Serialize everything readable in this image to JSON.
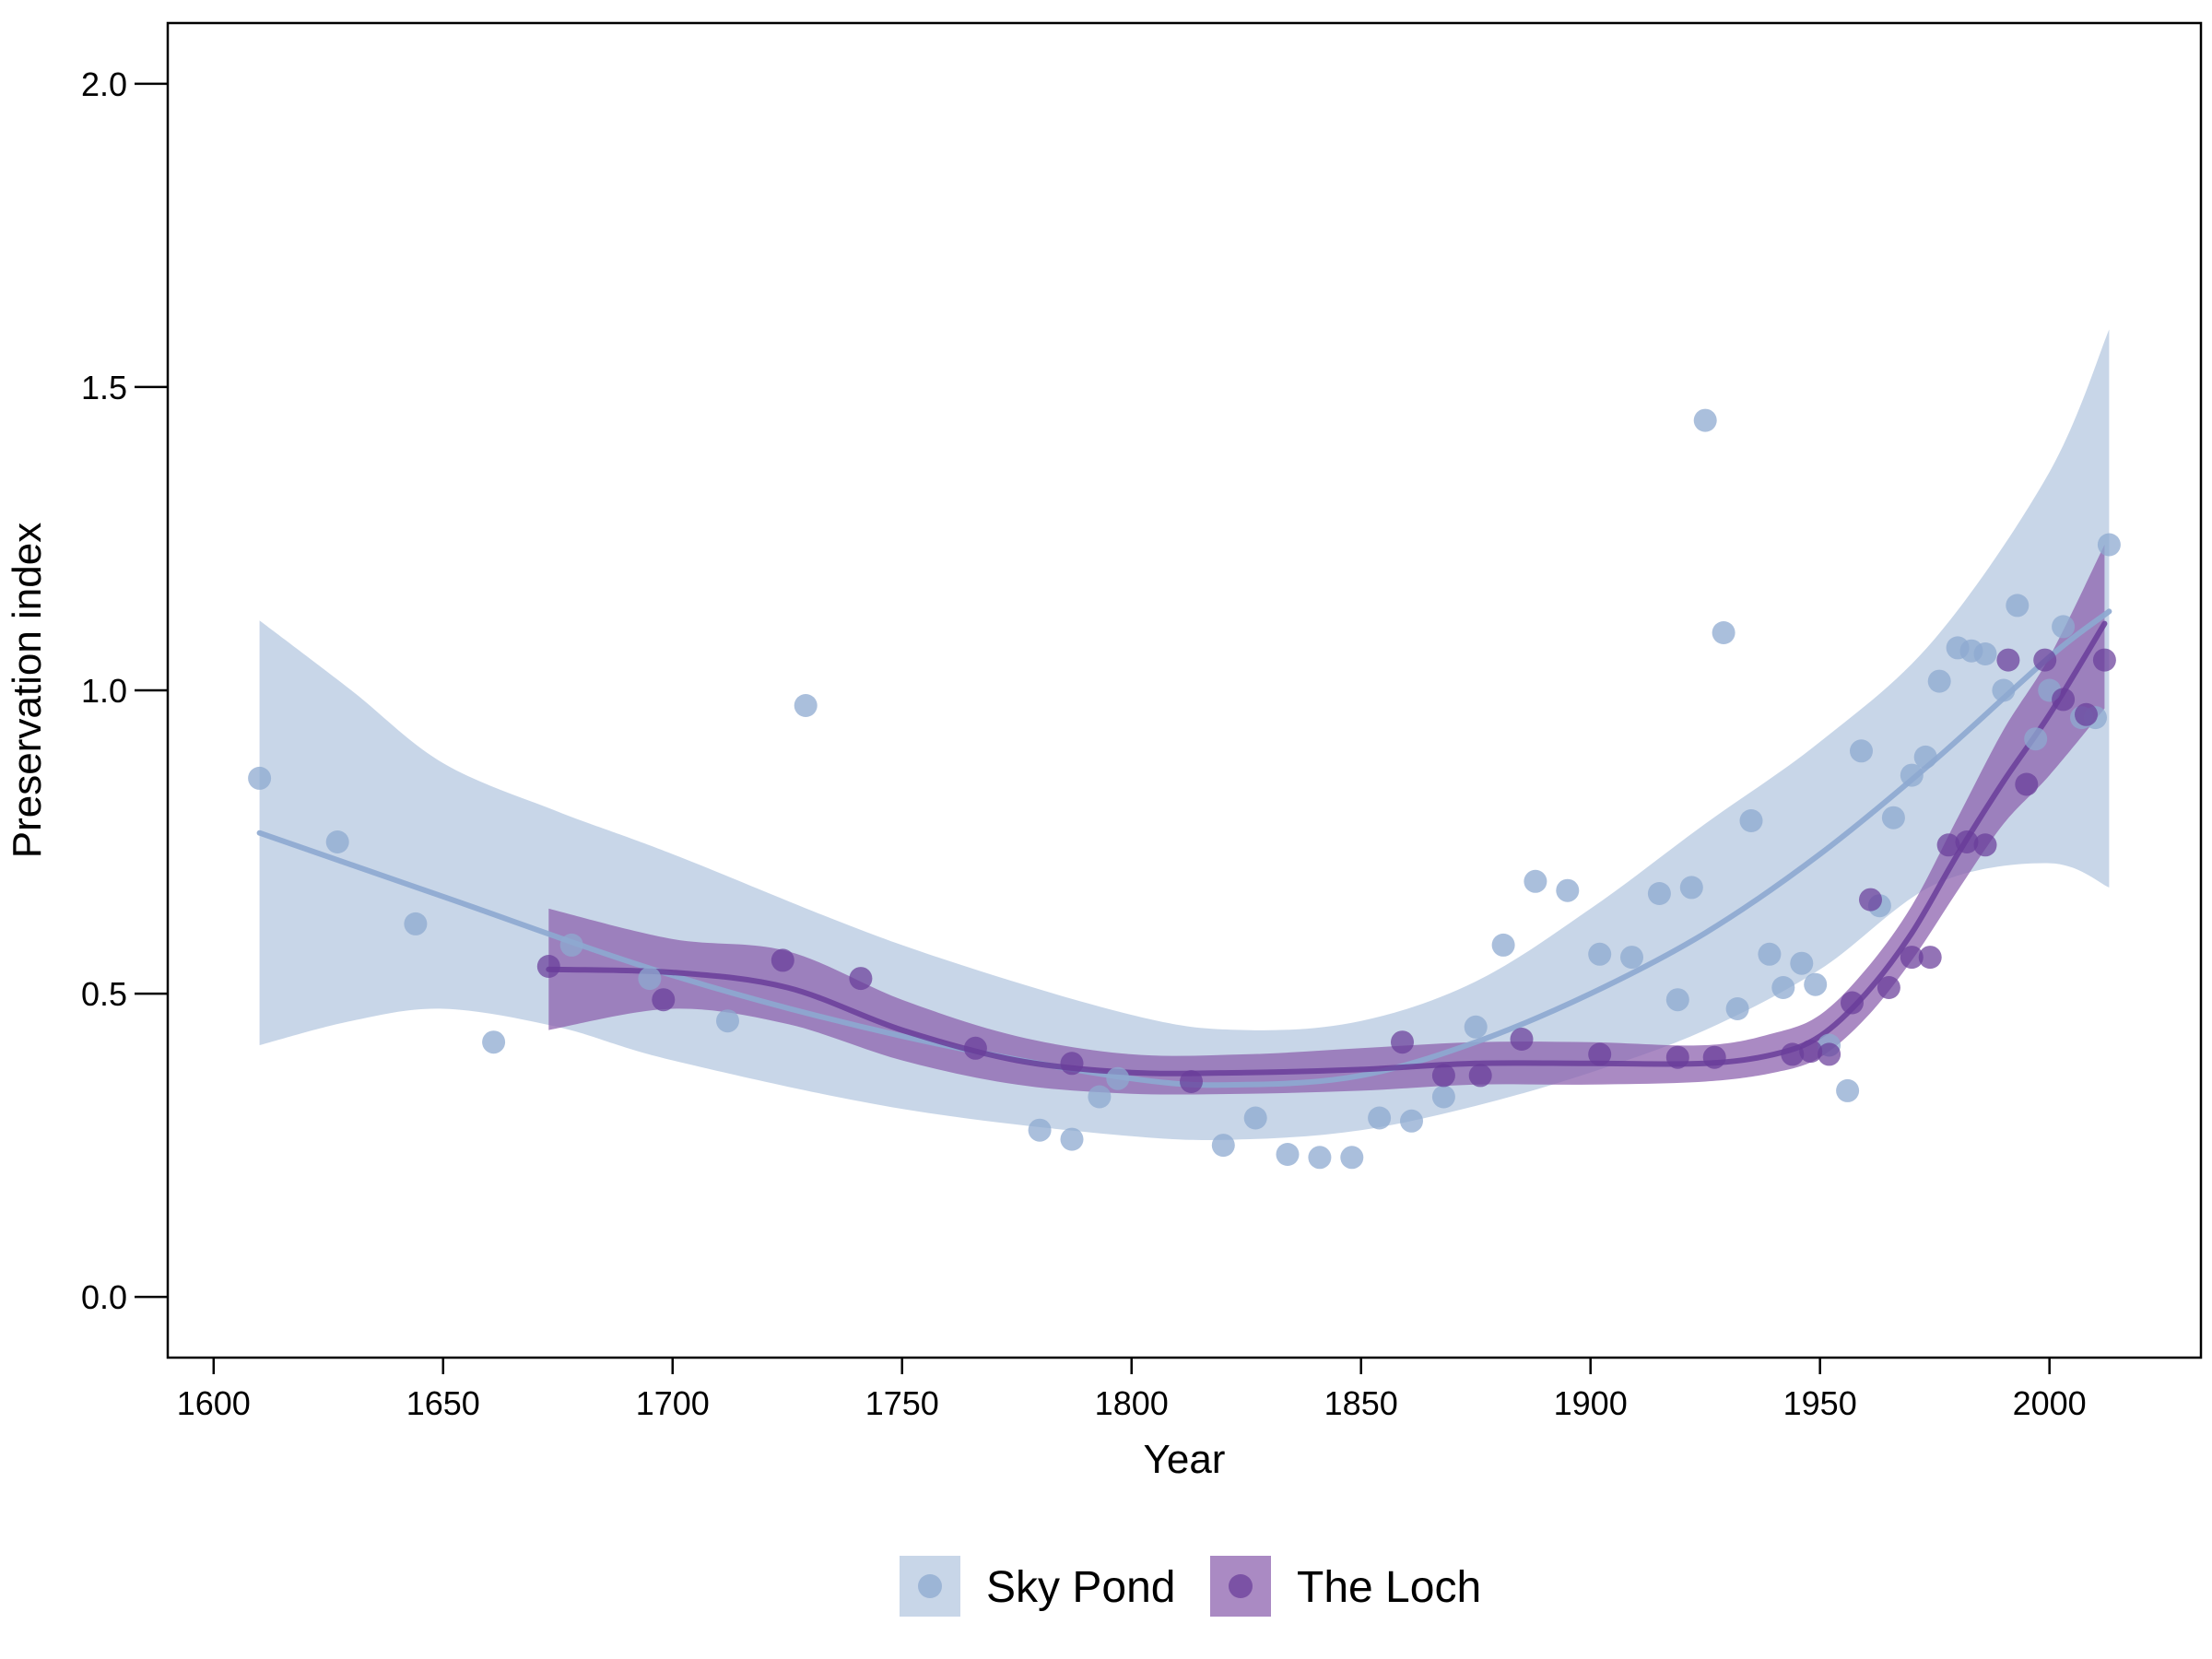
{
  "chart_data": {
    "type": "scatter",
    "title": "",
    "xlabel": "Year",
    "ylabel": "Preservation index",
    "xlim": [
      1590,
      2033
    ],
    "ylim": [
      -0.1,
      2.1
    ],
    "xticks": [
      1600,
      1650,
      1700,
      1750,
      1800,
      1850,
      1900,
      1950,
      2000
    ],
    "yticks": [
      0.0,
      0.5,
      1.0,
      1.5,
      2.0
    ],
    "xtick_labels": [
      "1600",
      "1650",
      "1700",
      "1750",
      "1800",
      "1850",
      "1900",
      "1950",
      "2000"
    ],
    "ytick_labels": [
      "0.0",
      "0.5",
      "1.0",
      "1.5",
      "2.0"
    ],
    "grid": false,
    "legend_position": "bottom-center",
    "series": [
      {
        "name": "Sky Pond",
        "color": "#8DA9D0",
        "band_color": "#C5D4E7",
        "points": [
          [
            1610,
            0.855
          ],
          [
            1627,
            0.75
          ],
          [
            1644,
            0.615
          ],
          [
            1661,
            0.42
          ],
          [
            1678,
            0.58
          ],
          [
            1695,
            0.525
          ],
          [
            1712,
            0.455
          ],
          [
            1729,
            0.975
          ],
          [
            1780,
            0.275
          ],
          [
            1787,
            0.26
          ],
          [
            1793,
            0.33
          ],
          [
            1797,
            0.36
          ],
          [
            1820,
            0.25
          ],
          [
            1827,
            0.295
          ],
          [
            1834,
            0.235
          ],
          [
            1841,
            0.23
          ],
          [
            1848,
            0.23
          ],
          [
            1854,
            0.295
          ],
          [
            1861,
            0.29
          ],
          [
            1868,
            0.33
          ],
          [
            1875,
            0.445
          ],
          [
            1881,
            0.58
          ],
          [
            1888,
            0.685
          ],
          [
            1895,
            0.67
          ],
          [
            1902,
            0.565
          ],
          [
            1909,
            0.56
          ],
          [
            1915,
            0.665
          ],
          [
            1919,
            0.49
          ],
          [
            1922,
            0.675
          ],
          [
            1925,
            1.445
          ],
          [
            1929,
            1.095
          ],
          [
            1932,
            0.475
          ],
          [
            1935,
            0.785
          ],
          [
            1939,
            0.565
          ],
          [
            1942,
            0.51
          ],
          [
            1946,
            0.55
          ],
          [
            1949,
            0.515
          ],
          [
            1952,
            0.415
          ],
          [
            1956,
            0.34
          ],
          [
            1959,
            0.9
          ],
          [
            1963,
            0.645
          ],
          [
            1966,
            0.79
          ],
          [
            1970,
            0.86
          ],
          [
            1973,
            0.89
          ],
          [
            1976,
            1.015
          ],
          [
            1980,
            1.07
          ],
          [
            1983,
            1.065
          ],
          [
            1986,
            1.06
          ],
          [
            1990,
            1.0
          ],
          [
            1993,
            1.14
          ],
          [
            1997,
            0.92
          ],
          [
            2000,
            1.0
          ],
          [
            2003,
            1.105
          ],
          [
            2007,
            0.955
          ],
          [
            2010,
            0.955
          ],
          [
            2013,
            1.24
          ]
        ],
        "fit": [
          [
            1610,
            0.765
          ],
          [
            1650,
            0.66
          ],
          [
            1700,
            0.53
          ],
          [
            1750,
            0.43
          ],
          [
            1800,
            0.36
          ],
          [
            1825,
            0.35
          ],
          [
            1850,
            0.365
          ],
          [
            1875,
            0.42
          ],
          [
            1900,
            0.5
          ],
          [
            1925,
            0.6
          ],
          [
            1950,
            0.73
          ],
          [
            1975,
            0.885
          ],
          [
            2000,
            1.055
          ],
          [
            2013,
            1.13
          ]
        ],
        "ci_upper": [
          [
            1610,
            1.115
          ],
          [
            1630,
            1.0
          ],
          [
            1650,
            0.88
          ],
          [
            1675,
            0.8
          ],
          [
            1700,
            0.73
          ],
          [
            1750,
            0.58
          ],
          [
            1800,
            0.465
          ],
          [
            1825,
            0.44
          ],
          [
            1850,
            0.455
          ],
          [
            1875,
            0.52
          ],
          [
            1900,
            0.64
          ],
          [
            1925,
            0.78
          ],
          [
            1950,
            0.915
          ],
          [
            1975,
            1.085
          ],
          [
            2000,
            1.36
          ],
          [
            2013,
            1.595
          ]
        ],
        "ci_lower": [
          [
            1610,
            0.415
          ],
          [
            1630,
            0.455
          ],
          [
            1650,
            0.475
          ],
          [
            1675,
            0.445
          ],
          [
            1700,
            0.39
          ],
          [
            1750,
            0.31
          ],
          [
            1800,
            0.265
          ],
          [
            1825,
            0.26
          ],
          [
            1850,
            0.275
          ],
          [
            1875,
            0.315
          ],
          [
            1900,
            0.37
          ],
          [
            1925,
            0.44
          ],
          [
            1950,
            0.54
          ],
          [
            1975,
            0.68
          ],
          [
            2000,
            0.715
          ],
          [
            2013,
            0.675
          ]
        ]
      },
      {
        "name": "The Loch",
        "color": "#6A3D9A",
        "band_color": "#8E63AF",
        "points": [
          [
            1673,
            0.545
          ],
          [
            1698,
            0.49
          ],
          [
            1724,
            0.555
          ],
          [
            1741,
            0.525
          ],
          [
            1766,
            0.41
          ],
          [
            1787,
            0.385
          ],
          [
            1813,
            0.355
          ],
          [
            1859,
            0.42
          ],
          [
            1868,
            0.365
          ],
          [
            1876,
            0.365
          ],
          [
            1885,
            0.425
          ],
          [
            1902,
            0.4
          ],
          [
            1919,
            0.395
          ],
          [
            1927,
            0.395
          ],
          [
            1944,
            0.4
          ],
          [
            1948,
            0.405
          ],
          [
            1952,
            0.4
          ],
          [
            1957,
            0.485
          ],
          [
            1961,
            0.655
          ],
          [
            1965,
            0.51
          ],
          [
            1970,
            0.56
          ],
          [
            1974,
            0.56
          ],
          [
            1978,
            0.745
          ],
          [
            1982,
            0.75
          ],
          [
            1986,
            0.745
          ],
          [
            1991,
            1.05
          ],
          [
            1995,
            0.845
          ],
          [
            1999,
            1.05
          ],
          [
            2003,
            0.985
          ],
          [
            2008,
            0.96
          ],
          [
            2012,
            1.05
          ]
        ],
        "fit": [
          [
            1673,
            0.54
          ],
          [
            1700,
            0.535
          ],
          [
            1725,
            0.51
          ],
          [
            1750,
            0.44
          ],
          [
            1775,
            0.39
          ],
          [
            1800,
            0.37
          ],
          [
            1825,
            0.37
          ],
          [
            1850,
            0.375
          ],
          [
            1875,
            0.385
          ],
          [
            1900,
            0.385
          ],
          [
            1925,
            0.385
          ],
          [
            1940,
            0.4
          ],
          [
            1950,
            0.43
          ],
          [
            1960,
            0.5
          ],
          [
            1970,
            0.6
          ],
          [
            1980,
            0.73
          ],
          [
            1990,
            0.85
          ],
          [
            2000,
            0.96
          ],
          [
            2012,
            1.11
          ]
        ],
        "ci_upper": [
          [
            1673,
            0.64
          ],
          [
            1700,
            0.59
          ],
          [
            1725,
            0.57
          ],
          [
            1750,
            0.49
          ],
          [
            1775,
            0.43
          ],
          [
            1800,
            0.4
          ],
          [
            1825,
            0.4
          ],
          [
            1850,
            0.41
          ],
          [
            1875,
            0.42
          ],
          [
            1900,
            0.42
          ],
          [
            1925,
            0.415
          ],
          [
            1940,
            0.435
          ],
          [
            1950,
            0.465
          ],
          [
            1960,
            0.54
          ],
          [
            1970,
            0.645
          ],
          [
            1980,
            0.79
          ],
          [
            1990,
            0.935
          ],
          [
            2000,
            1.055
          ],
          [
            2012,
            1.24
          ]
        ],
        "ci_lower": [
          [
            1673,
            0.44
          ],
          [
            1700,
            0.475
          ],
          [
            1725,
            0.45
          ],
          [
            1750,
            0.39
          ],
          [
            1775,
            0.35
          ],
          [
            1800,
            0.335
          ],
          [
            1825,
            0.335
          ],
          [
            1850,
            0.34
          ],
          [
            1875,
            0.35
          ],
          [
            1900,
            0.35
          ],
          [
            1925,
            0.355
          ],
          [
            1940,
            0.37
          ],
          [
            1950,
            0.395
          ],
          [
            1960,
            0.46
          ],
          [
            1970,
            0.555
          ],
          [
            1980,
            0.67
          ],
          [
            1990,
            0.78
          ],
          [
            2000,
            0.86
          ],
          [
            2012,
            0.97
          ]
        ]
      }
    ]
  }
}
